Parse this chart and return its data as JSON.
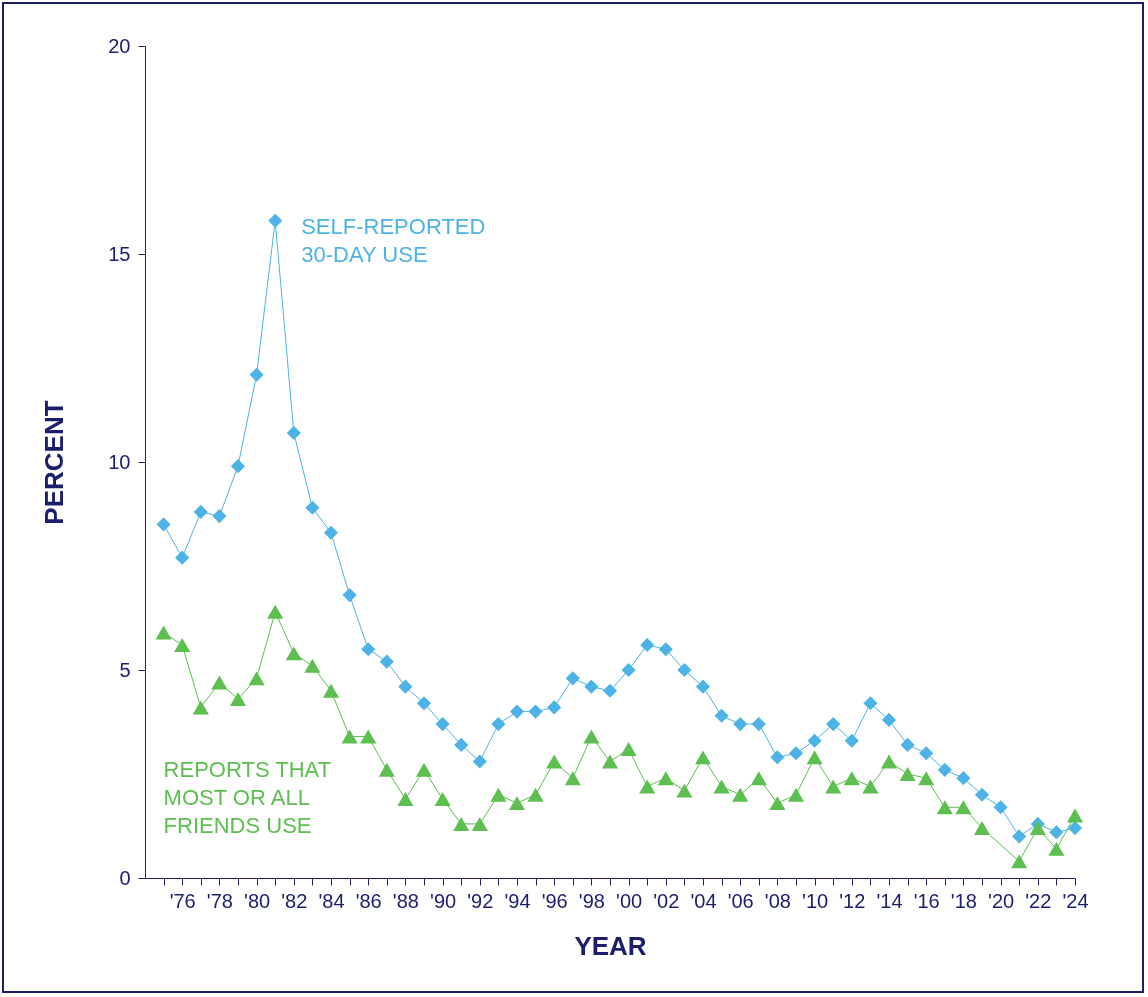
{
  "chart_data": {
    "type": "line",
    "xlabel": "YEAR",
    "ylabel": "PERCENT",
    "x": [
      1975,
      1976,
      1977,
      1978,
      1979,
      1980,
      1981,
      1982,
      1983,
      1984,
      1985,
      1986,
      1987,
      1988,
      1989,
      1990,
      1991,
      1992,
      1993,
      1994,
      1995,
      1996,
      1997,
      1998,
      1999,
      2000,
      2001,
      2002,
      2003,
      2004,
      2005,
      2006,
      2007,
      2008,
      2009,
      2010,
      2011,
      2012,
      2013,
      2014,
      2015,
      2016,
      2017,
      2018,
      2019,
      2020,
      2021,
      2022,
      2023,
      2024
    ],
    "series": [
      {
        "name": "SELF-REPORTED 30-DAY USE",
        "color": "#4db3e6",
        "marker": "diamond",
        "values": [
          8.5,
          7.7,
          8.8,
          8.7,
          9.9,
          12.1,
          15.8,
          10.7,
          8.9,
          8.3,
          6.8,
          5.5,
          5.2,
          4.6,
          4.2,
          3.7,
          3.2,
          2.8,
          3.7,
          4.0,
          4.0,
          4.1,
          4.8,
          4.6,
          4.5,
          5.0,
          5.6,
          5.5,
          5.0,
          4.6,
          3.9,
          3.7,
          3.7,
          2.9,
          3.0,
          3.3,
          3.7,
          3.3,
          4.2,
          3.8,
          3.2,
          3.0,
          2.6,
          2.4,
          2.0,
          1.7,
          1.0,
          1.3,
          1.1,
          1.2
        ]
      },
      {
        "name": "REPORTS THAT MOST OR ALL FRIENDS USE",
        "color": "#5cbf4f",
        "marker": "triangle",
        "values": [
          5.9,
          5.6,
          4.1,
          4.7,
          4.3,
          4.8,
          6.4,
          5.4,
          5.1,
          4.5,
          3.4,
          3.4,
          2.6,
          1.9,
          2.6,
          1.9,
          1.3,
          1.3,
          2.0,
          1.8,
          2.0,
          2.8,
          2.4,
          3.4,
          2.8,
          3.1,
          2.2,
          2.4,
          2.1,
          2.9,
          2.2,
          2.0,
          2.4,
          1.8,
          2.0,
          2.9,
          2.2,
          2.4,
          2.2,
          2.8,
          2.5,
          2.4,
          1.7,
          1.7,
          1.2,
          null,
          0.4,
          1.2,
          0.7,
          1.5
        ]
      }
    ],
    "xlim": [
      1974,
      2024
    ],
    "xticks": [
      {
        "value": 1975,
        "label": null
      },
      {
        "value": 1976,
        "label": "'76"
      },
      {
        "value": 1977,
        "label": null
      },
      {
        "value": 1978,
        "label": "'78"
      },
      {
        "value": 1979,
        "label": null
      },
      {
        "value": 1980,
        "label": "'80"
      },
      {
        "value": 1981,
        "label": null
      },
      {
        "value": 1982,
        "label": "'82"
      },
      {
        "value": 1983,
        "label": null
      },
      {
        "value": 1984,
        "label": "'84"
      },
      {
        "value": 1985,
        "label": null
      },
      {
        "value": 1986,
        "label": "'86"
      },
      {
        "value": 1987,
        "label": null
      },
      {
        "value": 1988,
        "label": "'88"
      },
      {
        "value": 1989,
        "label": null
      },
      {
        "value": 1990,
        "label": "'90"
      },
      {
        "value": 1991,
        "label": null
      },
      {
        "value": 1992,
        "label": "'92"
      },
      {
        "value": 1993,
        "label": null
      },
      {
        "value": 1994,
        "label": "'94"
      },
      {
        "value": 1995,
        "label": null
      },
      {
        "value": 1996,
        "label": "'96"
      },
      {
        "value": 1997,
        "label": null
      },
      {
        "value": 1998,
        "label": "'98"
      },
      {
        "value": 1999,
        "label": null
      },
      {
        "value": 2000,
        "label": "'00"
      },
      {
        "value": 2001,
        "label": null
      },
      {
        "value": 2002,
        "label": "'02"
      },
      {
        "value": 2003,
        "label": null
      },
      {
        "value": 2004,
        "label": "'04"
      },
      {
        "value": 2005,
        "label": null
      },
      {
        "value": 2006,
        "label": "'06"
      },
      {
        "value": 2007,
        "label": null
      },
      {
        "value": 2008,
        "label": "'08"
      },
      {
        "value": 2009,
        "label": null
      },
      {
        "value": 2010,
        "label": "'10"
      },
      {
        "value": 2011,
        "label": null
      },
      {
        "value": 2012,
        "label": "'12"
      },
      {
        "value": 2013,
        "label": null
      },
      {
        "value": 2014,
        "label": "'14"
      },
      {
        "value": 2015,
        "label": null
      },
      {
        "value": 2016,
        "label": "'16"
      },
      {
        "value": 2017,
        "label": null
      },
      {
        "value": 2018,
        "label": "'18"
      },
      {
        "value": 2019,
        "label": null
      },
      {
        "value": 2020,
        "label": "'20"
      },
      {
        "value": 2021,
        "label": null
      },
      {
        "value": 2022,
        "label": "'22"
      },
      {
        "value": 2023,
        "label": null
      },
      {
        "value": 2024,
        "label": "'24"
      }
    ],
    "ylim": [
      0,
      20
    ],
    "yticks": [
      0,
      5,
      10,
      15,
      20
    ],
    "grid": false,
    "line_style": "solid"
  }
}
